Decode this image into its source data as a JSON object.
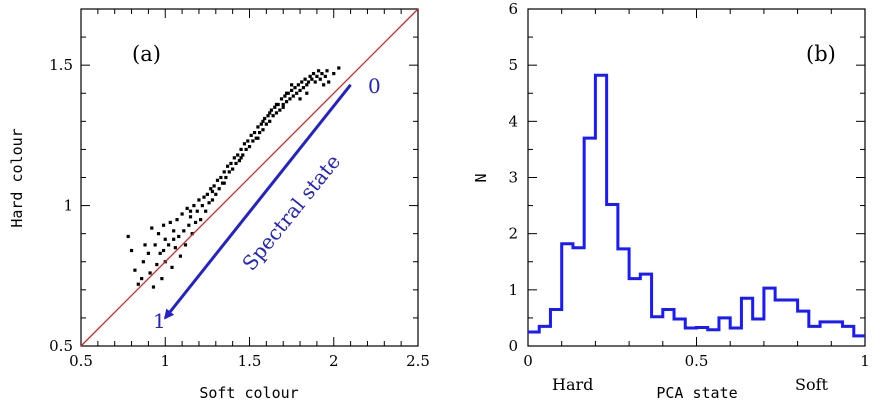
{
  "chart_data": [
    {
      "type": "scatter",
      "panel_label": "(a)",
      "xlabel": "Soft colour",
      "ylabel": "Hard colour",
      "xlim": [
        0.5,
        2.5
      ],
      "ylim": [
        0.5,
        1.7
      ],
      "x_ticks": [
        "0.5",
        "1",
        "1.5",
        "2",
        "2.5"
      ],
      "y_ticks": [
        "0.5",
        "1",
        "1.5"
      ],
      "y_tick_values": [
        0.5,
        1.0,
        1.5
      ],
      "line": {
        "name": "",
        "x": [
          0.5,
          2.5
        ],
        "y": [
          0.5,
          1.7
        ],
        "color": "#e02020"
      },
      "annotation": {
        "text": "Spectral state",
        "start_label": "0",
        "end_label": "1",
        "arrow_from": [
          2.1,
          1.43
        ],
        "arrow_to": [
          1.0,
          0.6
        ],
        "color": "#2323c8"
      },
      "points": [
        [
          0.78,
          0.89
        ],
        [
          0.8,
          0.84
        ],
        [
          0.82,
          0.77
        ],
        [
          0.84,
          0.72
        ],
        [
          0.86,
          0.74
        ],
        [
          0.87,
          0.8
        ],
        [
          0.88,
          0.86
        ],
        [
          0.9,
          0.83
        ],
        [
          0.91,
          0.76
        ],
        [
          0.92,
          0.92
        ],
        [
          0.93,
          0.71
        ],
        [
          0.94,
          0.86
        ],
        [
          0.95,
          0.79
        ],
        [
          0.96,
          0.9
        ],
        [
          0.97,
          0.83
        ],
        [
          0.98,
          0.74
        ],
        [
          0.99,
          0.93
        ],
        [
          1.0,
          0.88
        ],
        [
          1.0,
          0.8
        ],
        [
          1.02,
          0.86
        ],
        [
          1.03,
          0.94
        ],
        [
          1.04,
          0.78
        ],
        [
          1.05,
          0.91
        ],
        [
          1.06,
          0.85
        ],
        [
          1.07,
          0.95
        ],
        [
          1.08,
          0.89
        ],
        [
          1.09,
          0.82
        ],
        [
          1.1,
          0.97
        ],
        [
          1.11,
          0.91
        ],
        [
          1.12,
          0.86
        ],
        [
          1.13,
          0.99
        ],
        [
          1.14,
          0.93
        ],
        [
          1.15,
          0.96
        ],
        [
          1.16,
          0.9
        ],
        [
          1.17,
          1.0
        ],
        [
          1.18,
          0.94
        ],
        [
          1.19,
          0.98
        ],
        [
          1.2,
          1.02
        ],
        [
          1.21,
          0.95
        ],
        [
          1.22,
          1.0
        ],
        [
          1.23,
          1.03
        ],
        [
          1.24,
          0.98
        ],
        [
          1.25,
          1.04
        ],
        [
          1.26,
          1.01
        ],
        [
          1.27,
          1.06
        ],
        [
          1.28,
          1.02
        ],
        [
          1.29,
          1.07
        ],
        [
          1.3,
          1.04
        ],
        [
          1.31,
          1.09
        ],
        [
          1.32,
          1.06
        ],
        [
          1.33,
          1.1
        ],
        [
          1.34,
          1.08
        ],
        [
          1.35,
          1.12
        ],
        [
          1.36,
          1.1
        ],
        [
          1.37,
          1.14
        ],
        [
          1.38,
          1.12
        ],
        [
          1.39,
          1.15
        ],
        [
          1.4,
          1.13
        ],
        [
          1.41,
          1.17
        ],
        [
          1.42,
          1.15
        ],
        [
          1.43,
          1.18
        ],
        [
          1.44,
          1.16
        ],
        [
          1.45,
          1.2
        ],
        [
          1.46,
          1.18
        ],
        [
          1.47,
          1.22
        ],
        [
          1.48,
          1.2
        ],
        [
          1.49,
          1.23
        ],
        [
          1.5,
          1.21
        ],
        [
          1.51,
          1.25
        ],
        [
          1.52,
          1.23
        ],
        [
          1.53,
          1.26
        ],
        [
          1.54,
          1.24
        ],
        [
          1.55,
          1.28
        ],
        [
          1.56,
          1.26
        ],
        [
          1.57,
          1.29
        ],
        [
          1.58,
          1.27
        ],
        [
          1.59,
          1.31
        ],
        [
          1.6,
          1.29
        ],
        [
          1.61,
          1.32
        ],
        [
          1.62,
          1.3
        ],
        [
          1.63,
          1.34
        ],
        [
          1.64,
          1.32
        ],
        [
          1.65,
          1.35
        ],
        [
          1.66,
          1.33
        ],
        [
          1.67,
          1.36
        ],
        [
          1.68,
          1.34
        ],
        [
          1.69,
          1.38
        ],
        [
          1.7,
          1.36
        ],
        [
          1.71,
          1.39
        ],
        [
          1.72,
          1.37
        ],
        [
          1.73,
          1.4
        ],
        [
          1.74,
          1.38
        ],
        [
          1.75,
          1.41
        ],
        [
          1.76,
          1.39
        ],
        [
          1.77,
          1.42
        ],
        [
          1.78,
          1.4
        ],
        [
          1.79,
          1.43
        ],
        [
          1.8,
          1.41
        ],
        [
          1.81,
          1.44
        ],
        [
          1.82,
          1.42
        ],
        [
          1.83,
          1.45
        ],
        [
          1.84,
          1.43
        ],
        [
          1.85,
          1.44
        ],
        [
          1.86,
          1.46
        ],
        [
          1.87,
          1.45
        ],
        [
          1.88,
          1.47
        ],
        [
          1.89,
          1.44
        ],
        [
          1.9,
          1.46
        ],
        [
          1.91,
          1.48
        ],
        [
          1.92,
          1.45
        ],
        [
          1.93,
          1.47
        ],
        [
          1.94,
          1.43
        ],
        [
          1.95,
          1.46
        ],
        [
          1.96,
          1.48
        ],
        [
          1.97,
          1.44
        ],
        [
          2.0,
          1.47
        ],
        [
          2.03,
          1.49
        ],
        [
          1.55,
          1.24
        ],
        [
          1.62,
          1.33
        ],
        [
          1.7,
          1.35
        ],
        [
          1.75,
          1.43
        ],
        [
          1.8,
          1.38
        ],
        [
          1.45,
          1.17
        ],
        [
          1.35,
          1.08
        ],
        [
          1.28,
          1.05
        ],
        [
          1.15,
          0.98
        ],
        [
          1.05,
          0.88
        ],
        [
          0.99,
          0.84
        ],
        [
          1.58,
          1.3
        ],
        [
          1.66,
          1.36
        ],
        [
          1.72,
          1.4
        ],
        [
          1.84,
          1.4
        ]
      ]
    },
    {
      "type": "histogram",
      "panel_label": "(b)",
      "xlabel": "PCA state",
      "ylabel": "N",
      "xlim": [
        0,
        1
      ],
      "ylim": [
        0,
        6
      ],
      "x_ticks": [
        "0",
        "0.5",
        "1"
      ],
      "y_ticks": [
        "0",
        "1",
        "2",
        "3",
        "4",
        "5",
        "6"
      ],
      "left_label": "Hard",
      "right_label": "Soft",
      "bin_width": 0.0333,
      "values": [
        0.25,
        0.35,
        0.65,
        1.82,
        1.75,
        3.7,
        4.82,
        2.52,
        1.73,
        1.2,
        1.28,
        0.52,
        0.65,
        0.48,
        0.32,
        0.33,
        0.29,
        0.5,
        0.32,
        0.85,
        0.48,
        1.03,
        0.82,
        0.82,
        0.62,
        0.35,
        0.43,
        0.43,
        0.35,
        0.18
      ],
      "color": "#1a1aff"
    }
  ]
}
